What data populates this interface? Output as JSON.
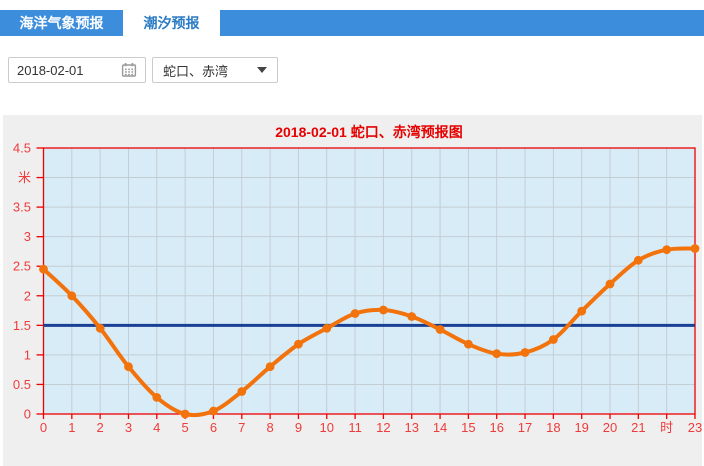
{
  "header": {
    "tabs": [
      {
        "label": "海洋气象预报",
        "active": false
      },
      {
        "label": "潮汐预报",
        "active": true
      }
    ]
  },
  "controls": {
    "date_value": "2018-02-01",
    "calendar_icon": "calendar-icon",
    "station_value": "蛇口、赤湾",
    "chevron_icon": "chevron-down-icon"
  },
  "colors": {
    "tab_bar": "#3c8ddb",
    "tab_active_text": "#2b7bc4",
    "panel_bg": "#f0efef",
    "plot_bg": "#d8ecf8",
    "grid": "#c3cdd3",
    "frame": "#ee0000",
    "axis_label": "#ee3c3c",
    "title": "#e60000",
    "series": "#f2720c",
    "reference": "#1a4096"
  },
  "chart_data": {
    "type": "line",
    "title": "2018-02-01 蛇口、赤湾预报图",
    "x": [
      0,
      1,
      2,
      3,
      4,
      5,
      6,
      7,
      8,
      9,
      10,
      11,
      12,
      13,
      14,
      15,
      16,
      17,
      18,
      19,
      20,
      21,
      22,
      23
    ],
    "x_tick_labels": [
      "0",
      "1",
      "2",
      "3",
      "4",
      "5",
      "6",
      "7",
      "8",
      "9",
      "10",
      "11",
      "12",
      "13",
      "14",
      "15",
      "16",
      "17",
      "18",
      "19",
      "20",
      "21",
      "时",
      "23"
    ],
    "y_ticks": [
      0,
      0.5,
      1,
      1.5,
      2,
      2.5,
      3,
      3.5,
      4,
      4.5
    ],
    "y_tick_labels": [
      "0",
      "0.5",
      "1",
      "1.5",
      "2",
      "2.5",
      "3",
      "3.5",
      "米",
      "4.5"
    ],
    "ylim": [
      0,
      4.5
    ],
    "x_unit": "时",
    "y_unit": "米",
    "grid": true,
    "legend": "none",
    "series": [
      {
        "values": [
          2.45,
          2.0,
          1.45,
          0.8,
          0.28,
          0.0,
          0.05,
          0.38,
          0.8,
          1.18,
          1.45,
          1.7,
          1.76,
          1.65,
          1.43,
          1.18,
          1.02,
          1.04,
          1.26,
          1.74,
          2.2,
          2.6,
          2.78,
          2.8
        ]
      }
    ],
    "reference_line": {
      "value": 1.5
    }
  }
}
